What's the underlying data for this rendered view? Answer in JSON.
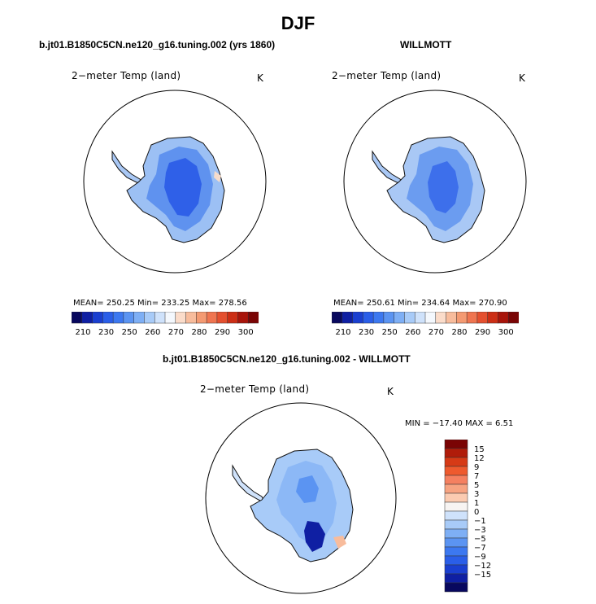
{
  "title": "DJF",
  "panels": [
    {
      "title": "b.jt01.B1850C5CN.ne120_g16.tuning.002 (yrs 1860)",
      "variable": "2−meter Temp (land)",
      "units": "K",
      "stats": "MEAN= 250.25   Min= 233.25   Max= 278.56"
    },
    {
      "title": "WILLMOTT",
      "variable": "2−meter Temp (land)",
      "units": "K",
      "stats": "MEAN= 250.61   Min= 234.64   Max= 270.90"
    },
    {
      "title": "b.jt01.B1850C5CN.ne120_g16.tuning.002 - WILLMOTT",
      "variable": "2−meter Temp (land)",
      "units": "K",
      "stats": "MIN = −17.40 MAX =    6.51"
    }
  ],
  "abs_colorbar": {
    "colors": [
      "#08085e",
      "#0f1fa3",
      "#1a3fd0",
      "#2a5ee8",
      "#3c78f0",
      "#5b94f2",
      "#7eaff5",
      "#a8cbf8",
      "#cfe2fb",
      "#f4f8fd",
      "#fbdcca",
      "#f8bc9c",
      "#f49a72",
      "#ef7550",
      "#e4502f",
      "#cc2e15",
      "#a8140a",
      "#7a0404"
    ],
    "tick_labels": [
      "210",
      "230",
      "250",
      "260",
      "270",
      "280",
      "290",
      "300"
    ]
  },
  "diff_colorbar": {
    "colors": [
      "#7a0404",
      "#b01c0a",
      "#d63a16",
      "#ee5a2e",
      "#f58060",
      "#f7a381",
      "#fbcbb1",
      "#f7f4f2",
      "#cfe2fb",
      "#a8cbf8",
      "#7eaff5",
      "#5b94f2",
      "#3c78f0",
      "#2a5ee8",
      "#1a3fd0",
      "#0f1fa3",
      "#08085e"
    ],
    "tick_labels": [
      "15",
      "12",
      "9",
      "7",
      "5",
      "3",
      "1",
      "0",
      "−1",
      "−3",
      "−5",
      "−7",
      "−9",
      "−12",
      "−15"
    ]
  }
}
